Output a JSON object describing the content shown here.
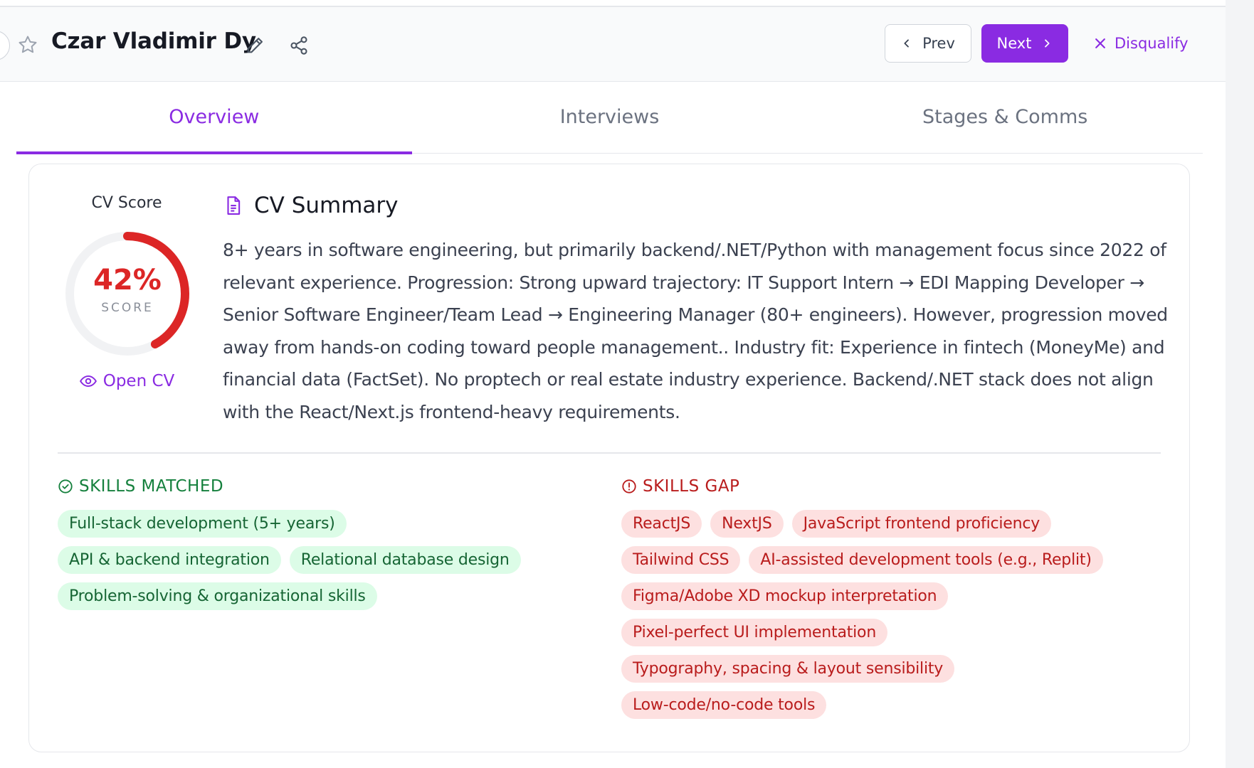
{
  "header": {
    "candidate_name": "Czar Vladimir Dy",
    "prev_label": "Prev",
    "next_label": "Next",
    "disqualify_label": "Disqualify"
  },
  "tabs": [
    {
      "label": "Overview",
      "active": true
    },
    {
      "label": "Interviews",
      "active": false
    },
    {
      "label": "Stages & Comms",
      "active": false
    }
  ],
  "cv_score": {
    "label": "CV Score",
    "percent_text": "42%",
    "value": 42,
    "sub_label": "SCORE",
    "open_cv_label": "Open CV"
  },
  "summary": {
    "title": "CV Summary",
    "text": "8+ years in software engineering, but primarily backend/.NET/Python with management focus since 2022 of relevant experience. Progression: Strong upward trajectory: IT Support Intern → EDI Mapping Developer → Senior Software Engineer/Team Lead → Engineering Manager (80+ engineers). However, progression moved away from hands-on coding toward people management.. Industry fit: Experience in fintech (MoneyMe) and financial data (FactSet). No proptech or real estate industry experience. Backend/.NET stack does not align with the React/Next.js frontend-heavy requirements."
  },
  "skills_matched": {
    "title": "SKILLS MATCHED",
    "items": [
      "Full-stack development (5+ years)",
      "API & backend integration",
      "Relational database design",
      "Problem-solving & organizational skills"
    ]
  },
  "skills_gap": {
    "title": "SKILLS GAP",
    "items": [
      "ReactJS",
      "NextJS",
      "JavaScript frontend proficiency",
      "Tailwind CSS",
      "AI-assisted development tools (e.g., Replit)",
      "Figma/Adobe XD mockup interpretation",
      "Pixel-perfect UI implementation",
      "Typography, spacing & layout sensibility",
      "Low-code/no-code tools"
    ]
  },
  "colors": {
    "accent": "#8a2be2",
    "score_red": "#dc2626",
    "matched_green": "#15803d",
    "gap_red": "#b91c1c"
  },
  "icons": [
    "back-icon",
    "star-icon",
    "pencil-icon",
    "share-icon",
    "chevron-left-icon",
    "chevron-right-icon",
    "close-icon",
    "document-icon",
    "eye-icon",
    "check-circle-icon",
    "alert-circle-icon"
  ]
}
